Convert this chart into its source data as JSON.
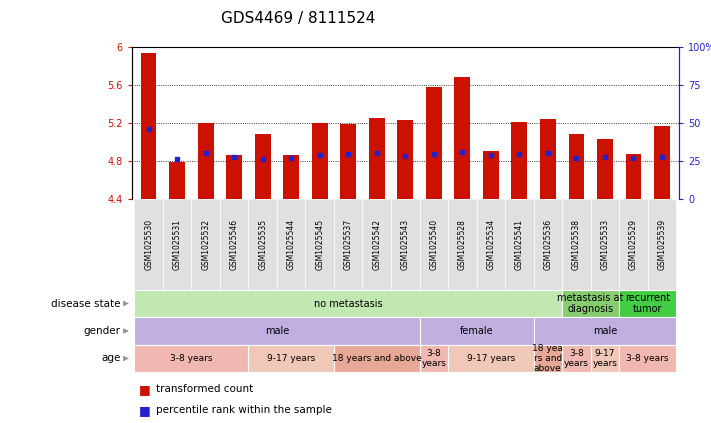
{
  "title": "GDS4469 / 8111524",
  "samples": [
    "GSM1025530",
    "GSM1025531",
    "GSM1025532",
    "GSM1025546",
    "GSM1025535",
    "GSM1025544",
    "GSM1025545",
    "GSM1025537",
    "GSM1025542",
    "GSM1025543",
    "GSM1025540",
    "GSM1025528",
    "GSM1025534",
    "GSM1025541",
    "GSM1025536",
    "GSM1025538",
    "GSM1025533",
    "GSM1025529",
    "GSM1025539"
  ],
  "bar_values": [
    5.93,
    4.79,
    5.2,
    4.86,
    5.08,
    4.86,
    5.2,
    5.19,
    5.25,
    5.23,
    5.58,
    5.68,
    4.9,
    5.21,
    5.24,
    5.08,
    5.03,
    4.87,
    5.17
  ],
  "percentile_ranks": [
    5.13,
    4.82,
    4.88,
    4.84,
    4.82,
    4.83,
    4.86,
    4.87,
    4.88,
    4.85,
    4.87,
    4.89,
    4.86,
    4.87,
    4.88,
    4.83,
    4.84,
    4.83,
    4.84
  ],
  "ymin": 4.4,
  "ymax": 6.0,
  "yticks": [
    4.4,
    4.8,
    5.2,
    5.6,
    6.0
  ],
  "ytick_labels": [
    "4.4",
    "4.8",
    "5.2",
    "5.6",
    "6"
  ],
  "right_yticks": [
    0,
    25,
    50,
    75,
    100
  ],
  "right_ytick_labels": [
    "0",
    "25",
    "50",
    "75",
    "100%"
  ],
  "bar_color": "#cc1100",
  "dot_color": "#2222cc",
  "axis_color_left": "#cc1100",
  "axis_color_right": "#2222cc",
  "disease_state_labels": [
    "no metastasis",
    "metastasis at\ndiagnosis",
    "recurrent\ntumor"
  ],
  "disease_state_ranges": [
    [
      0,
      14
    ],
    [
      15,
      16
    ],
    [
      17,
      18
    ]
  ],
  "disease_state_colors": [
    "#c0e8b0",
    "#88cc70",
    "#44cc44"
  ],
  "gender_labels": [
    "male",
    "female",
    "male"
  ],
  "gender_ranges": [
    [
      0,
      9
    ],
    [
      10,
      13
    ],
    [
      14,
      18
    ]
  ],
  "gender_color": "#c0b0e0",
  "age_labels": [
    "3-8 years",
    "9-17 years",
    "18 years and above",
    "3-8\nyears",
    "9-17 years",
    "18 yea\nrs and\nabove",
    "3-8\nyears",
    "9-17\nyears",
    "3-8 years"
  ],
  "age_ranges": [
    [
      0,
      3
    ],
    [
      4,
      6
    ],
    [
      7,
      9
    ],
    [
      10,
      10
    ],
    [
      11,
      13
    ],
    [
      14,
      14
    ],
    [
      15,
      15
    ],
    [
      16,
      16
    ],
    [
      17,
      18
    ]
  ],
  "age_color": "#f0c0b8",
  "tick_fontsize": 7,
  "title_fontsize": 11,
  "sample_fontsize": 5.5,
  "annot_fontsize": 7,
  "legend_fontsize": 7.5,
  "row_label_fontsize": 7.5
}
